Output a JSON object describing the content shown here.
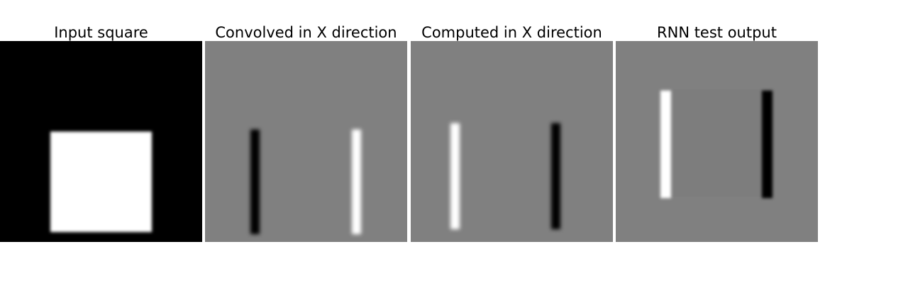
{
  "panels": [
    {
      "title": "Input square",
      "background": "#000000",
      "features": [
        {
          "shape": "square",
          "color": "#ffffff"
        }
      ]
    },
    {
      "title": "Convolved in X direction",
      "background": "#808080",
      "features": [
        {
          "shape": "vertical-bar",
          "color": "#000000",
          "side": "left"
        },
        {
          "shape": "vertical-bar",
          "color": "#ffffff",
          "side": "right"
        }
      ]
    },
    {
      "title": "Computed in X direction",
      "background": "#808080",
      "features": [
        {
          "shape": "vertical-bar",
          "color": "#ffffff",
          "side": "left"
        },
        {
          "shape": "vertical-bar",
          "color": "#000000",
          "side": "right"
        }
      ]
    },
    {
      "title": "RNN test output",
      "background": "#808080",
      "features": [
        {
          "shape": "vertical-bar",
          "color": "#ffffff",
          "side": "left"
        },
        {
          "shape": "vertical-bar",
          "color": "#000000",
          "side": "right"
        }
      ]
    }
  ]
}
